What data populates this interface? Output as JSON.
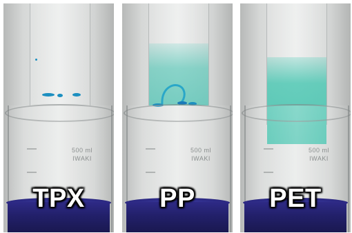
{
  "panels": [
    {
      "label": "TPX",
      "film_color": "#ffffff",
      "liquid_color": "#2a2780"
    },
    {
      "label": "PP",
      "film_color": "#5fc8b9",
      "liquid_color": "#2a2780"
    },
    {
      "label": "PET",
      "film_color": "#48c3af",
      "liquid_color": "#2a2780"
    }
  ],
  "beaker_marking": {
    "volume": "500 ml",
    "brand": "IWAKI"
  }
}
